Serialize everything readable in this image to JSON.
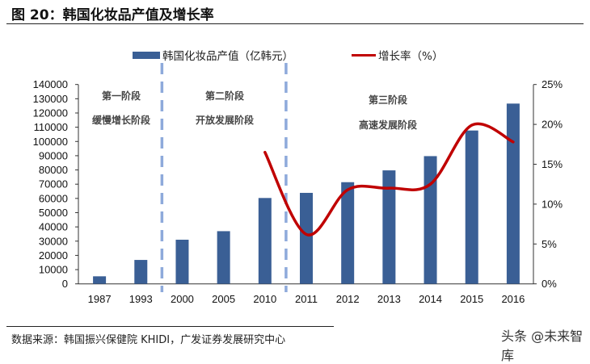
{
  "title": "图 20：韩国化妆品产值及增长率",
  "source": "数据来源：韩国振兴保健院 KHIDI，广发证券发展研究中心",
  "watermark": "头条 @未来智库",
  "phases": [
    {
      "name": "第一阶段",
      "desc": "缓慢增长阶段"
    },
    {
      "name": "第二阶段",
      "desc": "开放发展阶段"
    },
    {
      "name": "第三阶段",
      "desc": "高速发展阶段"
    }
  ],
  "chart_data": {
    "type": "bar",
    "categories": [
      "1987",
      "1993",
      "2000",
      "2005",
      "2010",
      "2011",
      "2012",
      "2013",
      "2014",
      "2015",
      "2016"
    ],
    "series": [
      {
        "name": "韩国化妆品产值（亿韩元）",
        "type": "bar",
        "axis": "left",
        "color": "#3A5F95",
        "values": [
          5300,
          16800,
          31000,
          37000,
          60300,
          63900,
          71400,
          79700,
          89700,
          107700,
          126600
        ]
      },
      {
        "name": "增长率（%）",
        "type": "line",
        "axis": "right",
        "color": "#C00000",
        "values": [
          null,
          null,
          null,
          null,
          16.5,
          6.2,
          11.8,
          12.0,
          12.5,
          19.9,
          17.8
        ]
      }
    ],
    "ylim": [
      0,
      140000
    ],
    "yticks": [
      "0",
      "10000",
      "20000",
      "30000",
      "40000",
      "50000",
      "60000",
      "70000",
      "80000",
      "90000",
      "100000",
      "110000",
      "120000",
      "130000",
      "140000"
    ],
    "y2lim": [
      0,
      25
    ],
    "y2ticks": [
      "0%",
      "5%",
      "10%",
      "15%",
      "20%",
      "25%"
    ],
    "legend": "top",
    "grid": false,
    "phase_dividers_after": [
      "1993",
      "2010"
    ],
    "divider_color": "#8EAADB"
  }
}
